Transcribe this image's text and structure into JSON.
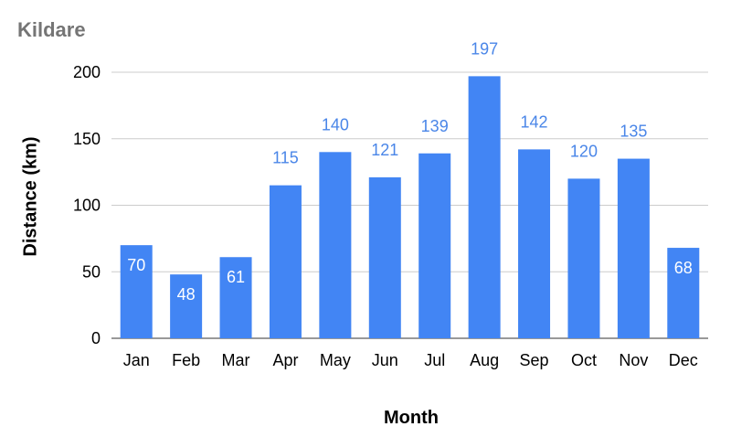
{
  "chart_data": {
    "type": "bar",
    "title": "Kildare",
    "xlabel": "Month",
    "ylabel": "Distance (km)",
    "categories": [
      "Jan",
      "Feb",
      "Mar",
      "Apr",
      "May",
      "Jun",
      "Jul",
      "Aug",
      "Sep",
      "Oct",
      "Nov",
      "Dec"
    ],
    "values": [
      70,
      48,
      61,
      115,
      140,
      121,
      139,
      197,
      142,
      120,
      135,
      68
    ],
    "ylim": [
      0,
      200
    ],
    "yticks": [
      0,
      50,
      100,
      150,
      200
    ],
    "grid": true,
    "legend": "none",
    "colors": {
      "bar": "#4285f4",
      "label_outside": "#4a86e8",
      "label_inside": "#ffffff",
      "grid": "#cccccc",
      "title": "#757575"
    }
  }
}
